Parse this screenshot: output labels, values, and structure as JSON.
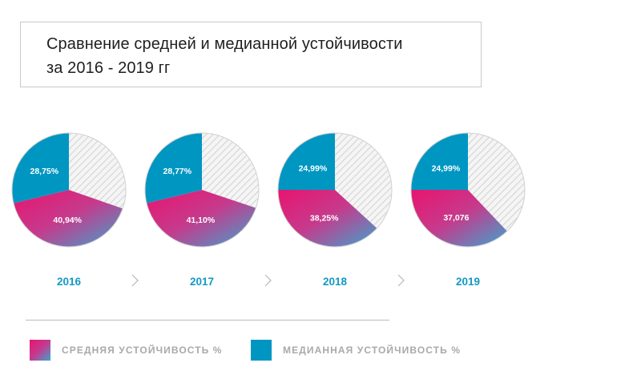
{
  "title_lines": [
    "Сравнение средней и медианной устойчивости",
    "за 2016 - 2019 гг"
  ],
  "chart_data": {
    "type": "pie",
    "title": "Сравнение средней и медианной устойчивости за 2016 - 2019 гг",
    "series_names": [
      "СРЕДНЯЯ УСТОЙЧИВОСТЬ %",
      "МЕДИАННАЯ УСТОЙЧИВОСТЬ %"
    ],
    "pies": [
      {
        "year": "2016",
        "median": 28.75,
        "mean": 40.94,
        "median_label": "28,75%",
        "mean_label": "40,94%"
      },
      {
        "year": "2017",
        "median": 28.77,
        "mean": 41.1,
        "median_label": "28,77%",
        "mean_label": "41,10%"
      },
      {
        "year": "2018",
        "median": 24.99,
        "mean": 38.25,
        "median_label": "24,99%",
        "mean_label": "38,25%"
      },
      {
        "year": "2019",
        "median": 24.99,
        "mean": 37.076,
        "median_label": "24,99%",
        "mean_label": "37,076"
      }
    ],
    "legend": [
      {
        "label": "СРЕДНЯЯ УСТОЙЧИВОСТЬ %",
        "style": "gradient"
      },
      {
        "label": "МЕДИАННАЯ УСТОЙЧИВОСТЬ %",
        "color": "#0096C2"
      }
    ]
  },
  "colors": {
    "median": "#0096C2",
    "mean_gradient_start": "#E8146F",
    "mean_gradient_mid": "#C23B8F",
    "mean_gradient_end": "#3AA6CF",
    "remainder_hatch": "#D9D9D9",
    "year_text": "#1499C3",
    "legend_text": "#A9A9A9"
  }
}
